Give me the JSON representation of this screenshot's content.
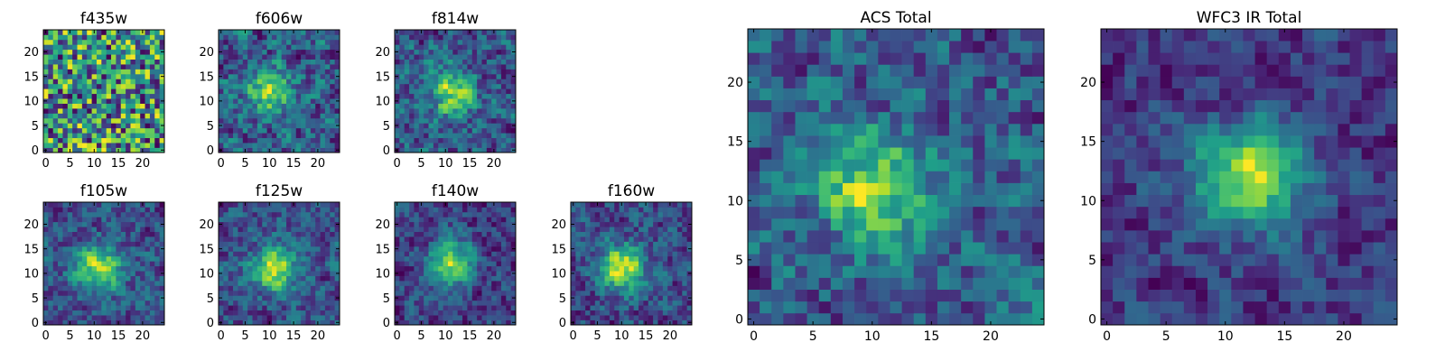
{
  "chart_data": [
    {
      "type": "heatmap",
      "title": "f435w",
      "grid_size": 25,
      "xticks": [
        0,
        5,
        10,
        15,
        20
      ],
      "yticks": [
        0,
        5,
        10,
        15,
        20
      ],
      "xlim": [
        -0.5,
        24.5
      ],
      "ylim": [
        -0.5,
        24.5
      ],
      "colormap": "viridis",
      "pattern": "noise",
      "peak": [
        12,
        12
      ],
      "peak_strength": 0.0,
      "noise_seed": 11
    },
    {
      "type": "heatmap",
      "title": "f606w",
      "grid_size": 25,
      "xticks": [
        0,
        5,
        10,
        15,
        20
      ],
      "yticks": [
        0,
        5,
        10,
        15,
        20
      ],
      "xlim": [
        -0.5,
        24.5
      ],
      "ylim": [
        -0.5,
        24.5
      ],
      "colormap": "viridis",
      "pattern": "source",
      "peak": [
        10,
        12
      ],
      "peak_strength": 0.5,
      "noise_seed": 23
    },
    {
      "type": "heatmap",
      "title": "f814w",
      "grid_size": 25,
      "xticks": [
        0,
        5,
        10,
        15,
        20
      ],
      "yticks": [
        0,
        5,
        10,
        15,
        20
      ],
      "xlim": [
        -0.5,
        24.5
      ],
      "ylim": [
        -0.5,
        24.5
      ],
      "colormap": "viridis",
      "pattern": "source",
      "peak": [
        11,
        12
      ],
      "peak_strength": 0.55,
      "noise_seed": 37
    },
    {
      "type": "heatmap",
      "title": "f105w",
      "grid_size": 25,
      "xticks": [
        0,
        5,
        10,
        15,
        20
      ],
      "yticks": [
        0,
        5,
        10,
        15,
        20
      ],
      "xlim": [
        -0.5,
        24.5
      ],
      "ylim": [
        -0.5,
        24.5
      ],
      "colormap": "viridis",
      "pattern": "source",
      "peak": [
        11,
        11
      ],
      "peak_strength": 0.7,
      "noise_seed": 41
    },
    {
      "type": "heatmap",
      "title": "f125w",
      "grid_size": 25,
      "xticks": [
        0,
        5,
        10,
        15,
        20
      ],
      "yticks": [
        0,
        5,
        10,
        15,
        20
      ],
      "xlim": [
        -0.5,
        24.5
      ],
      "ylim": [
        -0.5,
        24.5
      ],
      "colormap": "viridis",
      "pattern": "source",
      "peak": [
        11,
        11
      ],
      "peak_strength": 0.7,
      "noise_seed": 53
    },
    {
      "type": "heatmap",
      "title": "f140w",
      "grid_size": 25,
      "xticks": [
        0,
        5,
        10,
        15,
        20
      ],
      "yticks": [
        0,
        5,
        10,
        15,
        20
      ],
      "xlim": [
        -0.5,
        24.5
      ],
      "ylim": [
        -0.5,
        24.5
      ],
      "colormap": "viridis",
      "pattern": "source",
      "peak": [
        11,
        12
      ],
      "peak_strength": 0.75,
      "noise_seed": 67
    },
    {
      "type": "heatmap",
      "title": "f160w",
      "grid_size": 25,
      "xticks": [
        0,
        5,
        10,
        15,
        20
      ],
      "yticks": [
        0,
        5,
        10,
        15,
        20
      ],
      "xlim": [
        -0.5,
        24.5
      ],
      "ylim": [
        -0.5,
        24.5
      ],
      "colormap": "viridis",
      "pattern": "source",
      "peak": [
        10,
        11
      ],
      "peak_strength": 0.75,
      "noise_seed": 79
    },
    {
      "type": "heatmap",
      "title": "ACS Total",
      "grid_size": 25,
      "xticks": [
        0,
        5,
        10,
        15,
        20
      ],
      "yticks": [
        0,
        5,
        10,
        15,
        20
      ],
      "xlim": [
        -0.5,
        24.5
      ],
      "ylim": [
        -0.5,
        24.5
      ],
      "colormap": "viridis",
      "pattern": "source",
      "peak": [
        10,
        11
      ],
      "peak_strength": 0.6,
      "noise_seed": 83
    },
    {
      "type": "heatmap",
      "title": "WFC3 IR Total",
      "grid_size": 25,
      "xticks": [
        0,
        5,
        10,
        15,
        20
      ],
      "yticks": [
        0,
        5,
        10,
        15,
        20
      ],
      "xlim": [
        -0.5,
        24.5
      ],
      "ylim": [
        -0.5,
        24.5
      ],
      "colormap": "viridis",
      "pattern": "source",
      "peak": [
        12,
        12
      ],
      "peak_strength": 0.85,
      "noise_seed": 97
    }
  ]
}
